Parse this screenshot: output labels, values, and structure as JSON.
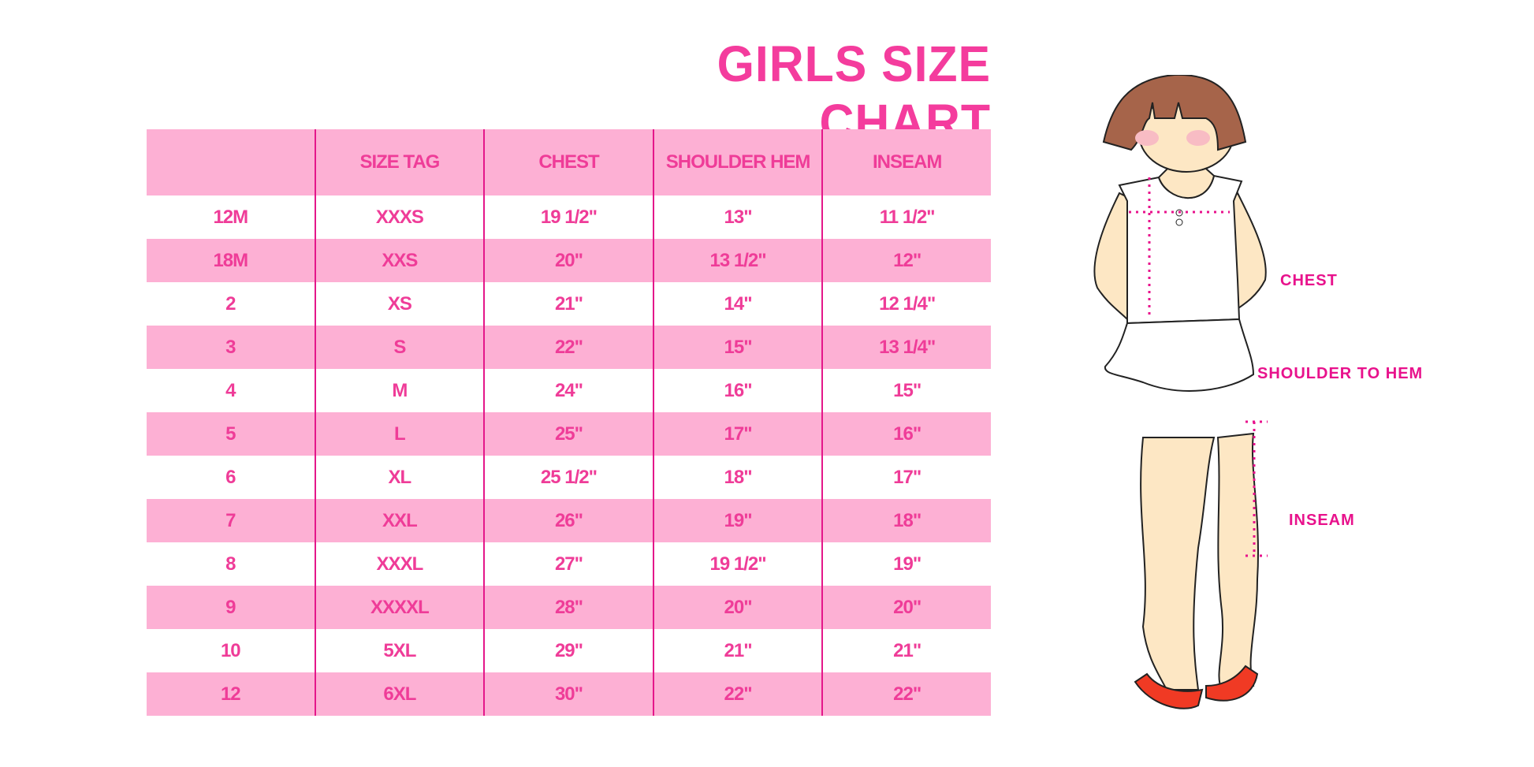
{
  "title": "GIRLS SIZE CHART",
  "table": {
    "headers": [
      "",
      "SIZE TAG",
      "CHEST",
      "SHOULDER HEM",
      "INSEAM"
    ],
    "rows": [
      [
        "12M",
        "XXXS",
        "19 1/2\"",
        "13\"",
        "11 1/2\""
      ],
      [
        "18M",
        "XXS",
        "20\"",
        "13 1/2\"",
        "12\""
      ],
      [
        "2",
        "XS",
        "21\"",
        "14\"",
        "12 1/4\""
      ],
      [
        "3",
        "S",
        "22\"",
        "15\"",
        "13 1/4\""
      ],
      [
        "4",
        "M",
        "24\"",
        "16\"",
        "15\""
      ],
      [
        "5",
        "L",
        "25\"",
        "17\"",
        "16\""
      ],
      [
        "6",
        "XL",
        "25 1/2\"",
        "18\"",
        "17\""
      ],
      [
        "7",
        "XXL",
        "26\"",
        "19\"",
        "18\""
      ],
      [
        "8",
        "XXXL",
        "27\"",
        "19 1/2\"",
        "19\""
      ],
      [
        "9",
        "XXXXL",
        "28\"",
        "20\"",
        "20\""
      ],
      [
        "10",
        "5XL",
        "29\"",
        "21\"",
        "21\""
      ],
      [
        "12",
        "6XL",
        "30\"",
        "22\"",
        "22\""
      ]
    ]
  },
  "figure": {
    "labels": {
      "chest": "CHEST",
      "shoulder": "SHOULDER TO HEM",
      "inseam": "INSEAM"
    }
  },
  "colors": {
    "accent": "#f43c9d",
    "row_fill": "#fdb0d4",
    "divider": "#e4178a",
    "hair": "#a6644a",
    "skin": "#fde7c4",
    "shoes": "#f03a24"
  }
}
